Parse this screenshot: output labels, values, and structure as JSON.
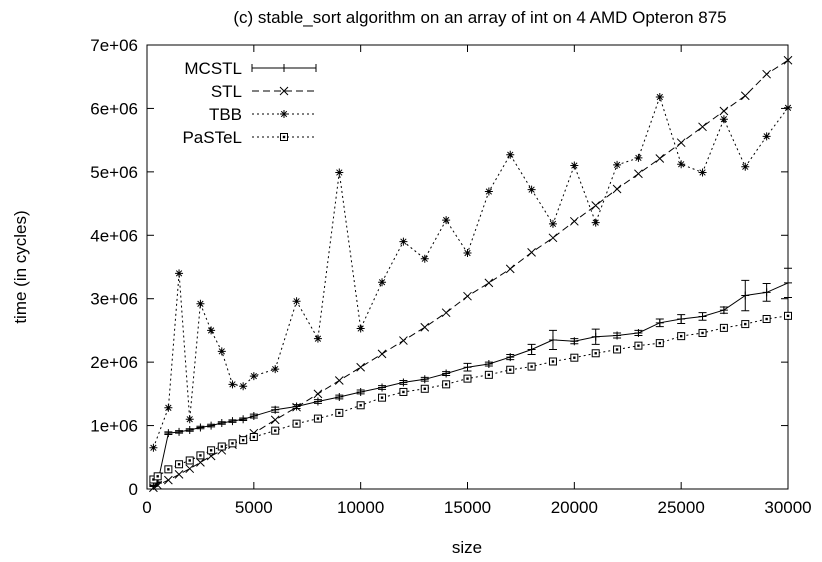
{
  "chart_data": {
    "type": "line",
    "title": "(c) stable_sort algorithm on an array of int on 4 AMD Opteron 875",
    "xlabel": "size",
    "ylabel": "time (in cycles)",
    "xlim": [
      0,
      30000
    ],
    "ylim": [
      0,
      7000000
    ],
    "xticks": [
      0,
      5000,
      10000,
      15000,
      20000,
      25000,
      30000
    ],
    "xtick_labels": [
      "0",
      "5000",
      "10000",
      "15000",
      "20000",
      "25000",
      "30000"
    ],
    "yticks": [
      0,
      1000000,
      2000000,
      3000000,
      4000000,
      5000000,
      6000000,
      7000000
    ],
    "ytick_labels": [
      "0",
      "1e+06",
      "2e+06",
      "3e+06",
      "4e+06",
      "5e+06",
      "6e+06",
      "7e+06"
    ],
    "grid": false,
    "legend_position": "top-left",
    "series": [
      {
        "name": "MCSTL",
        "style": "solid",
        "marker": "plus",
        "error_bars": true,
        "x": [
          300,
          500,
          1000,
          1500,
          2000,
          2500,
          3000,
          3500,
          4000,
          4500,
          5000,
          6000,
          7000,
          8000,
          9000,
          10000,
          11000,
          12000,
          13000,
          14000,
          15000,
          16000,
          17000,
          18000,
          19000,
          20000,
          21000,
          22000,
          23000,
          24000,
          25000,
          26000,
          27000,
          28000,
          29000,
          30000
        ],
        "y": [
          50000,
          100000,
          880000,
          900000,
          930000,
          970000,
          1000000,
          1040000,
          1070000,
          1100000,
          1150000,
          1250000,
          1300000,
          1380000,
          1450000,
          1530000,
          1600000,
          1680000,
          1730000,
          1820000,
          1920000,
          1970000,
          2080000,
          2200000,
          2350000,
          2330000,
          2400000,
          2420000,
          2460000,
          2620000,
          2680000,
          2720000,
          2820000,
          3050000,
          3100000,
          3250000
        ],
        "err": [
          10000,
          10000,
          20000,
          20000,
          20000,
          20000,
          20000,
          20000,
          20000,
          20000,
          30000,
          40000,
          30000,
          30000,
          30000,
          30000,
          30000,
          30000,
          30000,
          30000,
          60000,
          30000,
          40000,
          80000,
          150000,
          40000,
          120000,
          40000,
          40000,
          60000,
          70000,
          60000,
          50000,
          240000,
          140000,
          230000
        ]
      },
      {
        "name": "STL",
        "style": "dashed",
        "marker": "cross",
        "x": [
          300,
          500,
          1000,
          1500,
          2000,
          2500,
          3000,
          3500,
          4000,
          4500,
          5000,
          6000,
          7000,
          8000,
          9000,
          10000,
          11000,
          12000,
          13000,
          14000,
          15000,
          16000,
          17000,
          18000,
          19000,
          20000,
          21000,
          22000,
          23000,
          24000,
          25000,
          26000,
          27000,
          28000,
          29000,
          30000
        ],
        "y": [
          20000,
          60000,
          140000,
          230000,
          320000,
          420000,
          520000,
          610000,
          700000,
          790000,
          880000,
          1090000,
          1290000,
          1500000,
          1710000,
          1920000,
          2130000,
          2340000,
          2550000,
          2780000,
          3040000,
          3250000,
          3470000,
          3730000,
          3960000,
          4220000,
          4470000,
          4730000,
          4970000,
          5210000,
          5460000,
          5710000,
          5960000,
          6200000,
          6540000,
          6760000
        ]
      },
      {
        "name": "TBB",
        "style": "dotted",
        "marker": "star",
        "x": [
          300,
          1000,
          1500,
          2000,
          2500,
          3000,
          3500,
          4000,
          4500,
          5000,
          6000,
          7000,
          8000,
          9000,
          10000,
          11000,
          12000,
          13000,
          14000,
          15000,
          16000,
          17000,
          18000,
          19000,
          20000,
          21000,
          22000,
          23000,
          24000,
          25000,
          26000,
          27000,
          28000,
          29000,
          30000
        ],
        "y": [
          650000,
          1280000,
          3400000,
          1100000,
          2920000,
          2500000,
          2170000,
          1650000,
          1620000,
          1780000,
          1890000,
          2960000,
          2370000,
          4990000,
          2530000,
          3260000,
          3900000,
          3630000,
          4240000,
          3720000,
          4690000,
          5270000,
          4720000,
          4180000,
          5100000,
          4200000,
          5110000,
          5220000,
          6180000,
          5120000,
          4990000,
          5830000,
          5080000,
          5560000,
          6010000
        ]
      },
      {
        "name": "PaSTeL",
        "style": "dotted",
        "marker": "square",
        "x": [
          300,
          500,
          1000,
          1500,
          2000,
          2500,
          3000,
          3500,
          4000,
          4500,
          5000,
          6000,
          7000,
          8000,
          9000,
          10000,
          11000,
          12000,
          13000,
          14000,
          15000,
          16000,
          17000,
          18000,
          19000,
          20000,
          21000,
          22000,
          23000,
          24000,
          25000,
          26000,
          27000,
          28000,
          29000,
          30000
        ],
        "y": [
          150000,
          200000,
          310000,
          390000,
          450000,
          530000,
          610000,
          670000,
          720000,
          770000,
          820000,
          920000,
          1030000,
          1110000,
          1200000,
          1320000,
          1440000,
          1530000,
          1580000,
          1650000,
          1740000,
          1800000,
          1880000,
          1930000,
          2010000,
          2070000,
          2140000,
          2200000,
          2260000,
          2300000,
          2410000,
          2460000,
          2540000,
          2600000,
          2680000,
          2730000
        ]
      }
    ]
  }
}
